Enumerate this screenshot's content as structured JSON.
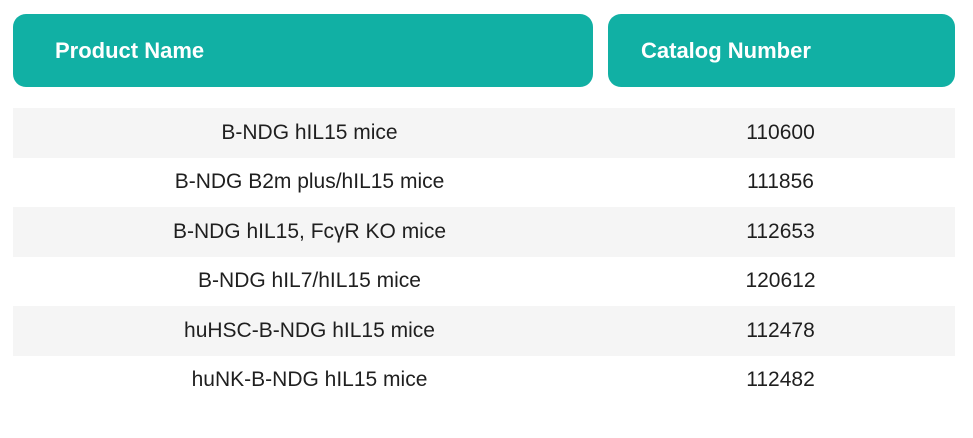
{
  "headers": {
    "product_name": "Product Name",
    "catalog_number": "Catalog Number"
  },
  "rows": [
    {
      "name": "B-NDG hIL15 mice",
      "catalog": "110600"
    },
    {
      "name": "B-NDG B2m plus/hIL15 mice",
      "catalog": "111856"
    },
    {
      "name": "B-NDG hIL15, FcγR KO mice",
      "catalog": "112653"
    },
    {
      "name": "B-NDG hIL7/hIL15 mice",
      "catalog": "120612"
    },
    {
      "name": "huHSC-B-NDG hIL15 mice",
      "catalog": "112478"
    },
    {
      "name": "huNK-B-NDG hIL15 mice",
      "catalog": "112482"
    }
  ],
  "colors": {
    "header_bg": "#11b0a4",
    "header_text": "#ffffff",
    "stripe": "#f5f5f5"
  }
}
